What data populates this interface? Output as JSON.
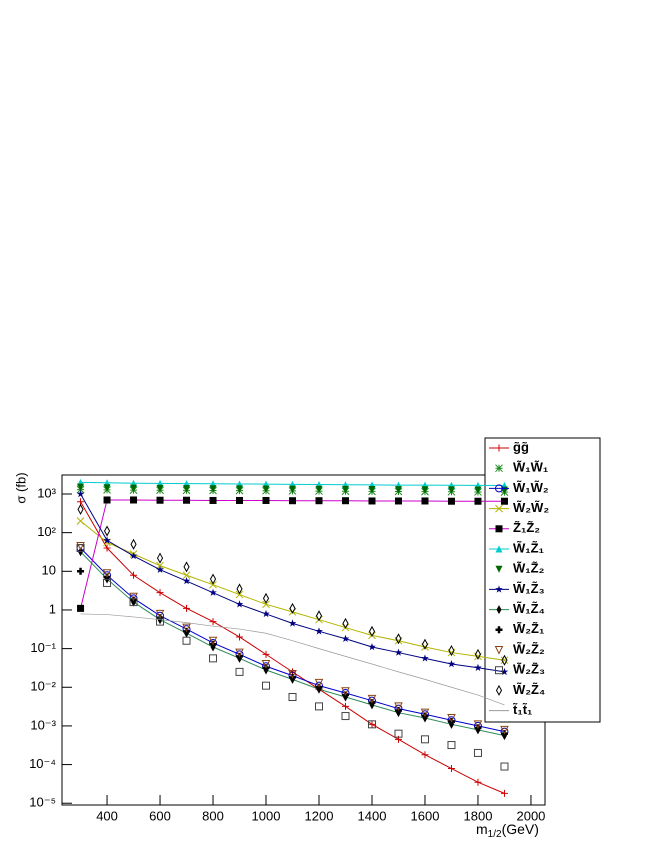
{
  "chart_data": {
    "type": "line",
    "log_y": true,
    "legend": "top-right",
    "y_label": "σ (fb)",
    "x_label": {
      "base": "m",
      "sub": "1/2",
      "unit": "(GeV)"
    },
    "x": [
      300,
      400,
      500,
      600,
      700,
      800,
      900,
      1000,
      1100,
      1200,
      1300,
      1400,
      1500,
      1600,
      1700,
      1800,
      1900
    ],
    "xlim": [
      230,
      2053
    ],
    "xticks": [
      400,
      600,
      800,
      1000,
      1200,
      1400,
      1600,
      1800,
      2000
    ],
    "ylim": [
      9e-06,
      3100
    ],
    "yticks": [
      {
        "value": 1000,
        "label": "10³"
      },
      {
        "value": 100,
        "label": "10²"
      },
      10,
      1,
      {
        "value": 0.1,
        "label": "10⁻¹"
      },
      {
        "value": 0.01,
        "label": "10⁻²"
      },
      {
        "value": 0.001,
        "label": "10⁻³"
      },
      {
        "value": 0.0001,
        "label": "10⁻⁴"
      },
      {
        "value": 1e-05,
        "label": "10⁻⁵"
      }
    ],
    "series": [
      {
        "name": "g̃g̃",
        "color": "#cc0000",
        "marker": "plus",
        "line": true,
        "values": [
          630,
          40,
          7.9,
          2.8,
          1.1,
          0.5,
          0.2,
          0.071,
          0.025,
          0.0089,
          0.0032,
          0.0011,
          0.00045,
          0.00018,
          7.9e-05,
          3.5e-05,
          1.8e-05
        ]
      },
      {
        "name": "W̃₁W̃₁",
        "color": "#1a8a1a",
        "marker": "asterisk",
        "line": false,
        "values": [
          1300,
          1280,
          1260,
          1250,
          1240,
          1230,
          1220,
          1210,
          1200,
          1190,
          1180,
          1170,
          1160,
          1150,
          1140,
          1130,
          1120
        ]
      },
      {
        "name": "W̃₁W̃₂",
        "color": "#0000cc",
        "marker": "circle-open",
        "line": true,
        "values": [
          40,
          7.9,
          2.0,
          0.71,
          0.32,
          0.14,
          0.071,
          0.035,
          0.02,
          0.011,
          0.0071,
          0.0045,
          0.0028,
          0.002,
          0.0014,
          0.001,
          0.00071
        ]
      },
      {
        "name": "W̃₂W̃₂",
        "color": "#b3b300",
        "marker": "x",
        "line": true,
        "values": [
          200,
          56,
          28,
          14,
          7.9,
          4.5,
          2.5,
          1.4,
          0.89,
          0.56,
          0.35,
          0.22,
          0.16,
          0.11,
          0.079,
          0.063,
          0.05
        ]
      },
      {
        "name": "Z̃₁Z̃₂",
        "color": "#cc00cc",
        "marker": "square",
        "line": true,
        "values": [
          1.1,
          700,
          700,
          690,
          690,
          680,
          680,
          680,
          670,
          670,
          670,
          660,
          660,
          660,
          650,
          650,
          650
        ]
      },
      {
        "name": "W̃₁Z̃₁",
        "color": "#00cccc",
        "marker": "triangle",
        "line": true,
        "values": [
          2000,
          1950,
          1900,
          1880,
          1860,
          1840,
          1820,
          1800,
          1780,
          1760,
          1740,
          1720,
          1700,
          1690,
          1680,
          1670,
          1660
        ]
      },
      {
        "name": "W̃₁Z̃₂",
        "color": "#006600",
        "marker": "triangle-down",
        "line": false,
        "values": [
          1500,
          1450,
          1420,
          1400,
          1380,
          1370,
          1360,
          1350,
          1340,
          1330,
          1320,
          1310,
          1300,
          1290,
          1280,
          1270,
          1260
        ]
      },
      {
        "name": "W̃₁Z̃₃",
        "color": "#000080",
        "marker": "star",
        "line": true,
        "values": [
          1000,
          63,
          25,
          11,
          5.6,
          2.8,
          1.4,
          0.79,
          0.45,
          0.28,
          0.18,
          0.11,
          0.079,
          0.056,
          0.04,
          0.032,
          0.025
        ]
      },
      {
        "name": "W̃₁Z̃₄",
        "color": "#2e8b57",
        "marker": "diamond",
        "line": true,
        "values": [
          32,
          6.3,
          1.6,
          0.56,
          0.25,
          0.11,
          0.056,
          0.028,
          0.016,
          0.0089,
          0.0056,
          0.0035,
          0.0022,
          0.0016,
          0.0011,
          0.00079,
          0.00056
        ]
      },
      {
        "name": "W̃₂Z̃₁",
        "color": "#000000",
        "marker": "cross",
        "line": false,
        "values": [
          10,
          7.1,
          1.8,
          0.63,
          0.28,
          0.13,
          0.063,
          0.032,
          0.018,
          0.01,
          0.0063,
          0.004,
          0.0025,
          0.0018,
          0.0013,
          0.00089,
          0.00063
        ]
      },
      {
        "name": "W̃₂Z̃₂",
        "color": "#8b4513",
        "marker": "triangle-down-open",
        "line": false,
        "values": [
          45,
          8.9,
          2.2,
          0.79,
          0.35,
          0.16,
          0.079,
          0.04,
          0.022,
          0.013,
          0.0079,
          0.005,
          0.0032,
          0.0022,
          0.0016,
          0.0011,
          0.00079
        ]
      },
      {
        "name": "W̃₂Z̃₃",
        "color": "#444444",
        "marker": "square-open",
        "line": false,
        "values": [
          40,
          5.0,
          1.6,
          0.5,
          0.16,
          0.056,
          0.025,
          0.011,
          0.0056,
          0.0032,
          0.0018,
          0.0011,
          0.00063,
          0.00045,
          0.00032,
          0.0002,
          8.9e-05
        ]
      },
      {
        "name": "W̃₂Z̃₄",
        "color": "#8b6914",
        "marker": "diamond-open",
        "line": false,
        "values": [
          400,
          110,
          50,
          22,
          13,
          6.3,
          3.5,
          2.0,
          1.1,
          0.71,
          0.45,
          0.28,
          0.18,
          0.13,
          0.089,
          0.071,
          0.05
        ]
      },
      {
        "name": "t̃₁t̃₁",
        "color": "#999999",
        "marker": "none",
        "line": true,
        "values": [
          0.79,
          0.76,
          0.66,
          0.56,
          0.47,
          0.38,
          0.32,
          0.25,
          0.16,
          0.1,
          0.063,
          0.04,
          0.025,
          0.016,
          0.01,
          0.0063,
          0.0035
        ]
      }
    ]
  }
}
